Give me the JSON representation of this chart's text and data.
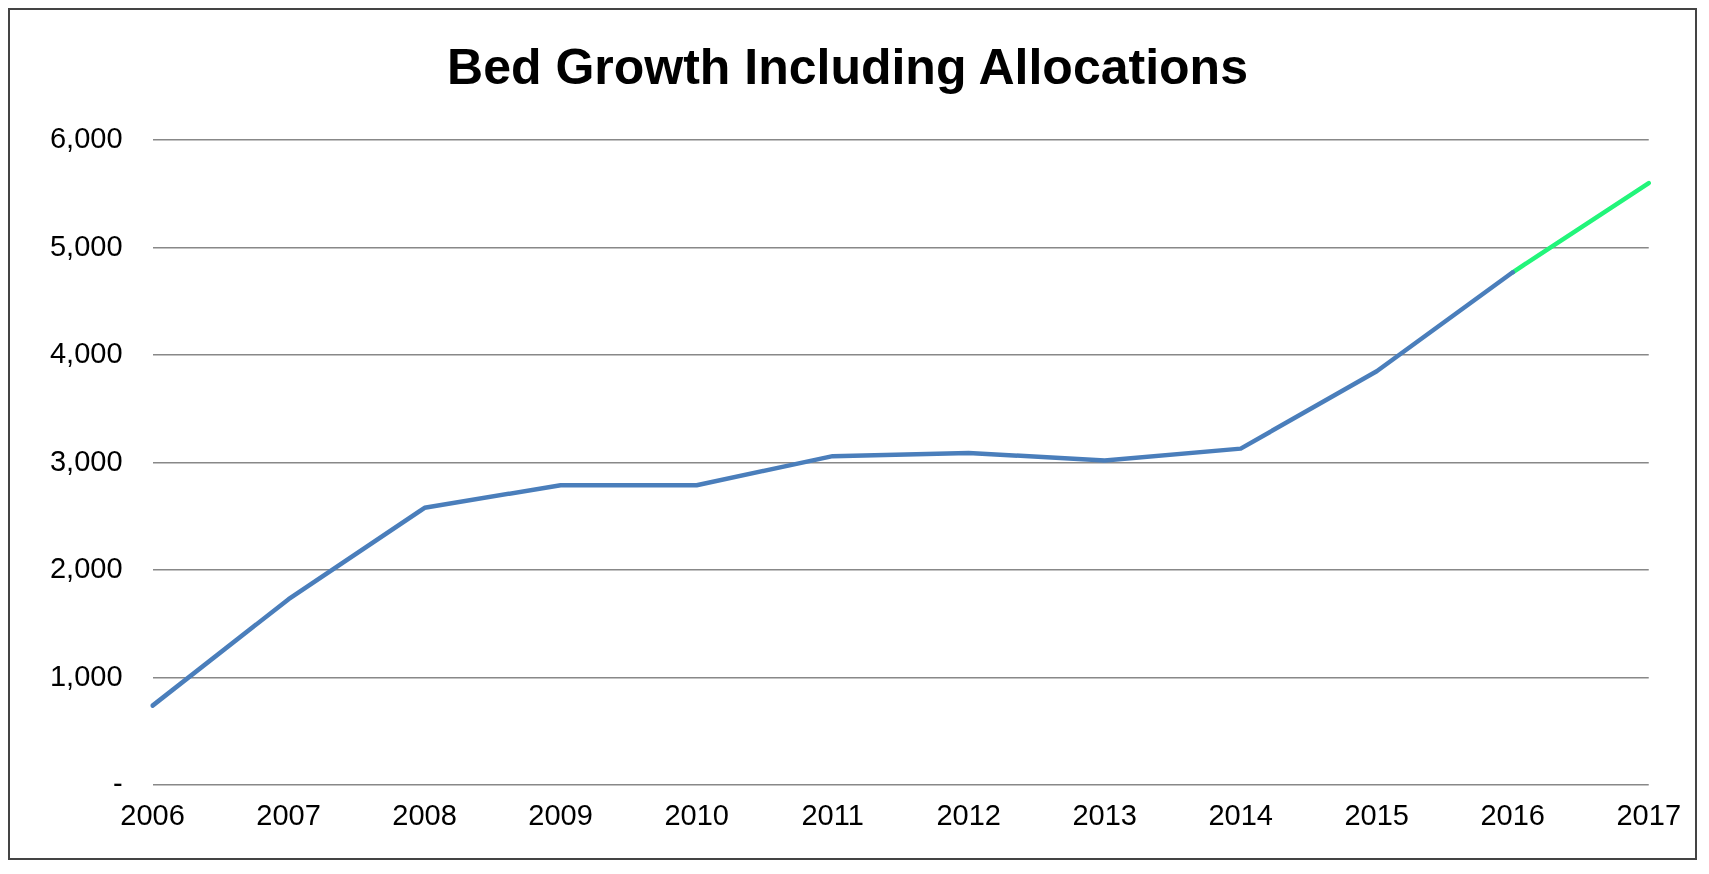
{
  "chart_data": {
    "type": "line",
    "title": "Bed Growth Including Allocations",
    "categories": [
      "2006",
      "2007",
      "2008",
      "2009",
      "2010",
      "2011",
      "2012",
      "2013",
      "2014",
      "2015",
      "2016",
      "2017"
    ],
    "series": [
      {
        "color": "#4a7ebb",
        "values": [
          740,
          1730,
          2580,
          2790,
          2790,
          3060,
          3090,
          3020,
          3130,
          3850,
          4770,
          null
        ]
      },
      {
        "color": "#22f57a",
        "values": [
          null,
          null,
          null,
          null,
          null,
          null,
          null,
          null,
          null,
          null,
          4770,
          5600
        ]
      }
    ],
    "ylim": [
      0,
      6000
    ],
    "yticks": [
      {
        "value": 0,
        "label": "-"
      },
      {
        "value": 1000,
        "label": "1,000"
      },
      {
        "value": 2000,
        "label": "2,000"
      },
      {
        "value": 3000,
        "label": "3,000"
      },
      {
        "value": 4000,
        "label": "4,000"
      },
      {
        "value": 5000,
        "label": "5,000"
      },
      {
        "value": 6000,
        "label": "6,000"
      }
    ],
    "grid": "y",
    "legend": false,
    "marker": "none",
    "line_style": "solid"
  }
}
